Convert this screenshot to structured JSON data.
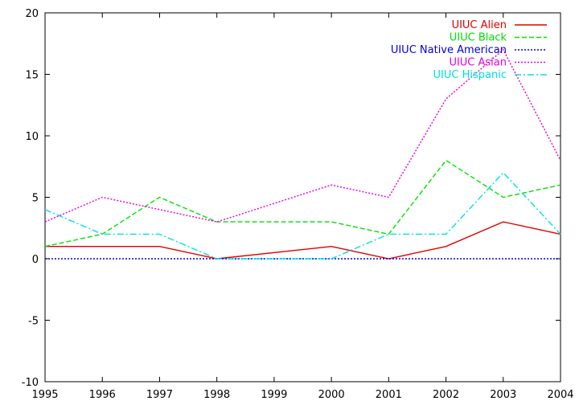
{
  "chart_data": {
    "type": "line",
    "x": [
      1995,
      1996,
      1997,
      1998,
      1999,
      2000,
      2001,
      2002,
      2003,
      2004
    ],
    "xticks": [
      "1995",
      "1996",
      "1997",
      "1998",
      "1999",
      "2000",
      "2001",
      "2002",
      "2003",
      "2004"
    ],
    "yticks": [
      "-10",
      "-5",
      "0",
      "5",
      "10",
      "15",
      "20"
    ],
    "xlim": [
      1995,
      2004
    ],
    "ylim": [
      -10,
      20
    ],
    "grid": false,
    "legend_position": "top-right",
    "series": [
      {
        "name": "UIUC Alien",
        "color": "#e00000",
        "dash": "solid",
        "values": [
          1,
          1,
          1,
          0,
          null,
          1,
          0,
          1,
          3,
          2
        ]
      },
      {
        "name": "UIUC Black",
        "color": "#00e000",
        "dash": "dashed",
        "values": [
          1,
          2,
          5,
          3,
          null,
          3,
          2,
          8,
          5,
          6
        ]
      },
      {
        "name": "UIUC Native American",
        "color": "#0000e0",
        "dash": "dotted",
        "values": [
          0,
          0,
          0,
          0,
          null,
          0,
          0,
          0,
          0,
          0
        ]
      },
      {
        "name": "UIUC Asian",
        "color": "#e000e0",
        "dash": "dotted",
        "values": [
          3,
          5,
          4,
          3,
          null,
          6,
          5,
          13,
          17,
          8
        ]
      },
      {
        "name": "UIUC Hispanic",
        "color": "#00e0e0",
        "dash": "dashdot",
        "values": [
          4,
          2,
          2,
          0,
          null,
          0,
          2,
          2,
          7,
          2
        ]
      }
    ]
  }
}
